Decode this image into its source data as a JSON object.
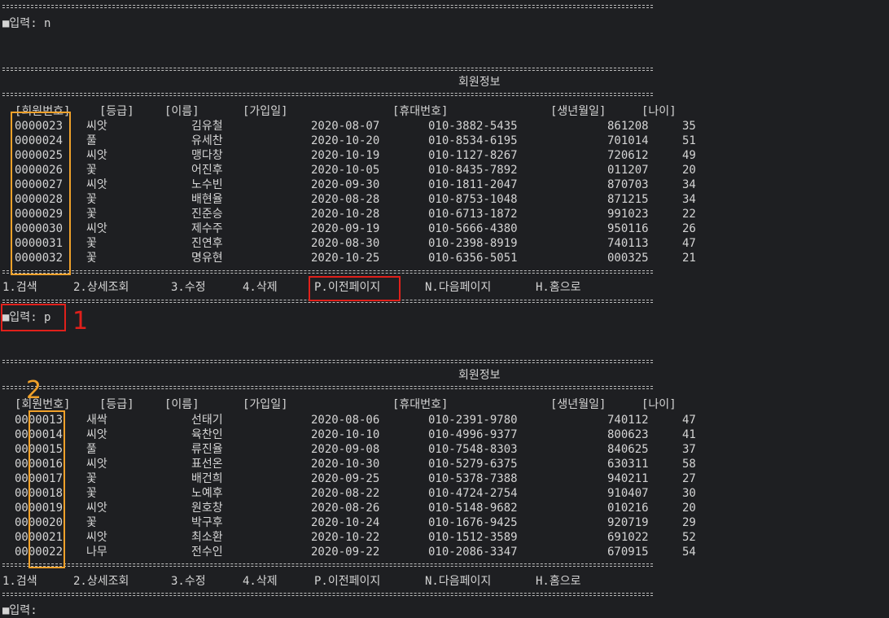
{
  "colors": {
    "annotation_red": "#e0201b",
    "annotation_orange": "#f0a12a",
    "background": "#1e1f22",
    "text": "#d4d4d4"
  },
  "prompt_first": "■입력: n",
  "prompt_second": "■입력: p",
  "prompt_third": "■입력: ",
  "screen_title": "회원정보",
  "headers": {
    "member_no": "[회원번호]",
    "grade": "[등급]",
    "name": "[이름]",
    "join_date": "[가입일]",
    "phone": "[휴대번호]",
    "birth": "[생년월일]",
    "age": "[나이]"
  },
  "menu": {
    "search": "1.검색",
    "detail": "2.상세조회",
    "edit": "3.수정",
    "delete": "4.삭제",
    "prev": "P.이전페이지",
    "next": "N.다음페이지",
    "home": "H.홈으로"
  },
  "annotations": {
    "label_1": "1",
    "label_2": "2"
  },
  "page1_rows": [
    {
      "no": "0000023",
      "grade": "씨앗",
      "name": "김유철",
      "date": "2020-08-07",
      "phone": "010-3882-5435",
      "birth": "861208",
      "age": "35"
    },
    {
      "no": "0000024",
      "grade": "풀",
      "name": "유세찬",
      "date": "2020-10-20",
      "phone": "010-8534-6195",
      "birth": "701014",
      "age": "51"
    },
    {
      "no": "0000025",
      "grade": "씨앗",
      "name": "맹다창",
      "date": "2020-10-19",
      "phone": "010-1127-8267",
      "birth": "720612",
      "age": "49"
    },
    {
      "no": "0000026",
      "grade": "꽃",
      "name": "어진후",
      "date": "2020-10-05",
      "phone": "010-8435-7892",
      "birth": "011207",
      "age": "20"
    },
    {
      "no": "0000027",
      "grade": "씨앗",
      "name": "노수빈",
      "date": "2020-09-30",
      "phone": "010-1811-2047",
      "birth": "870703",
      "age": "34"
    },
    {
      "no": "0000028",
      "grade": "꽃",
      "name": "배현율",
      "date": "2020-08-28",
      "phone": "010-8753-1048",
      "birth": "871215",
      "age": "34"
    },
    {
      "no": "0000029",
      "grade": "꽃",
      "name": "진준승",
      "date": "2020-10-28",
      "phone": "010-6713-1872",
      "birth": "991023",
      "age": "22"
    },
    {
      "no": "0000030",
      "grade": "씨앗",
      "name": "제수주",
      "date": "2020-09-19",
      "phone": "010-5666-4380",
      "birth": "950116",
      "age": "26"
    },
    {
      "no": "0000031",
      "grade": "꽃",
      "name": "진연후",
      "date": "2020-08-30",
      "phone": "010-2398-8919",
      "birth": "740113",
      "age": "47"
    },
    {
      "no": "0000032",
      "grade": "꽃",
      "name": "명유현",
      "date": "2020-10-25",
      "phone": "010-6356-5051",
      "birth": "000325",
      "age": "21"
    }
  ],
  "page2_rows": [
    {
      "no": "0000013",
      "grade": "새싹",
      "name": "선태기",
      "date": "2020-08-06",
      "phone": "010-2391-9780",
      "birth": "740112",
      "age": "47"
    },
    {
      "no": "0000014",
      "grade": "씨앗",
      "name": "육찬인",
      "date": "2020-10-10",
      "phone": "010-4996-9377",
      "birth": "800623",
      "age": "41"
    },
    {
      "no": "0000015",
      "grade": "풀",
      "name": "류진율",
      "date": "2020-09-08",
      "phone": "010-7548-8303",
      "birth": "840625",
      "age": "37"
    },
    {
      "no": "0000016",
      "grade": "씨앗",
      "name": "표선온",
      "date": "2020-10-30",
      "phone": "010-5279-6375",
      "birth": "630311",
      "age": "58"
    },
    {
      "no": "0000017",
      "grade": "꽃",
      "name": "배건희",
      "date": "2020-09-25",
      "phone": "010-5378-7388",
      "birth": "940211",
      "age": "27"
    },
    {
      "no": "0000018",
      "grade": "꽃",
      "name": "노예후",
      "date": "2020-08-22",
      "phone": "010-4724-2754",
      "birth": "910407",
      "age": "30"
    },
    {
      "no": "0000019",
      "grade": "씨앗",
      "name": "원호창",
      "date": "2020-08-26",
      "phone": "010-5148-9682",
      "birth": "010216",
      "age": "20"
    },
    {
      "no": "0000020",
      "grade": "꽃",
      "name": "박구후",
      "date": "2020-10-24",
      "phone": "010-1676-9425",
      "birth": "920719",
      "age": "29"
    },
    {
      "no": "0000021",
      "grade": "씨앗",
      "name": "최소환",
      "date": "2020-10-22",
      "phone": "010-1512-3589",
      "birth": "691022",
      "age": "52"
    },
    {
      "no": "0000022",
      "grade": "나무",
      "name": "전수인",
      "date": "2020-09-22",
      "phone": "010-2086-3347",
      "birth": "670915",
      "age": "54"
    }
  ]
}
